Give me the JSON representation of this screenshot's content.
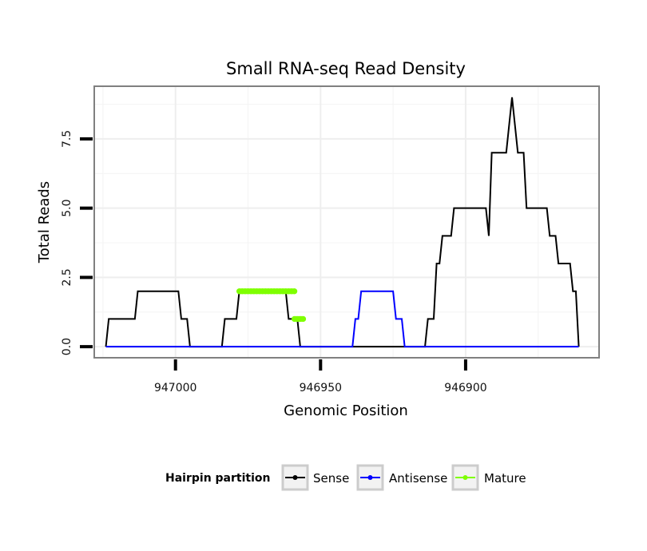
{
  "chart_data": {
    "type": "line",
    "title": "Small RNA-seq Read Density",
    "xlabel": "Genomic Position",
    "ylabel": "Total Reads",
    "x_reversed": true,
    "xlim": [
      947028,
      946854
    ],
    "ylim": [
      -0.4,
      9.4
    ],
    "x_ticks": [
      947000,
      946950,
      946900
    ],
    "x_tick_labels": [
      "947000",
      "946950",
      "946900"
    ],
    "y_ticks": [
      0,
      2.5,
      5,
      7.5
    ],
    "y_tick_labels": [
      "0.0",
      "2.5",
      "5.0",
      "7.5"
    ],
    "grid": true,
    "legend": {
      "title": "Hairpin partition",
      "placement": "bottom",
      "entries": [
        {
          "name": "Sense",
          "color": "#000000"
        },
        {
          "name": "Antisense",
          "color": "#0000ff"
        },
        {
          "name": "Mature",
          "color": "#7fff00"
        }
      ]
    },
    "series": [
      {
        "name": "Sense",
        "color": "#000000",
        "points": [
          [
            947024,
            0
          ],
          [
            947023,
            1
          ],
          [
            947014,
            1
          ],
          [
            947013,
            2
          ],
          [
            946999,
            2
          ],
          [
            946998,
            1
          ],
          [
            946996,
            1
          ],
          [
            946995,
            0
          ],
          [
            946984,
            0
          ],
          [
            946983,
            1
          ],
          [
            946979,
            1
          ],
          [
            946978,
            2
          ],
          [
            946962,
            2
          ],
          [
            946961,
            1
          ],
          [
            946958,
            1
          ],
          [
            946957,
            0
          ],
          [
            946914,
            0
          ],
          [
            946913,
            1
          ],
          [
            946911,
            1
          ],
          [
            946910,
            3
          ],
          [
            946909,
            3
          ],
          [
            946908,
            4
          ],
          [
            946905,
            4
          ],
          [
            946904,
            5
          ],
          [
            946893,
            5
          ],
          [
            946892,
            4
          ],
          [
            946891,
            7
          ],
          [
            946886,
            7
          ],
          [
            946885,
            8
          ],
          [
            946884,
            9
          ],
          [
            946883,
            8
          ],
          [
            946882,
            7
          ],
          [
            946880,
            7
          ],
          [
            946879,
            5
          ],
          [
            946872,
            5
          ],
          [
            946871,
            4
          ],
          [
            946869,
            4
          ],
          [
            946868,
            3
          ],
          [
            946864,
            3
          ],
          [
            946863,
            2
          ],
          [
            946862,
            2
          ],
          [
            946861,
            0
          ]
        ]
      },
      {
        "name": "Antisense",
        "color": "#0000ff",
        "points": [
          [
            947024,
            0
          ],
          [
            946939,
            0
          ],
          [
            946938,
            1
          ],
          [
            946937,
            1
          ],
          [
            946936,
            2
          ],
          [
            946925,
            2
          ],
          [
            946924,
            1
          ],
          [
            946922,
            1
          ],
          [
            946921,
            0
          ],
          [
            946861,
            0
          ]
        ]
      },
      {
        "name": "Mature",
        "color": "#7fff00",
        "segments": [
          {
            "x_start": 946978,
            "x_end": 946959,
            "y": 2
          },
          {
            "x_start": 946959,
            "x_end": 946956,
            "y": 1
          }
        ]
      }
    ]
  }
}
